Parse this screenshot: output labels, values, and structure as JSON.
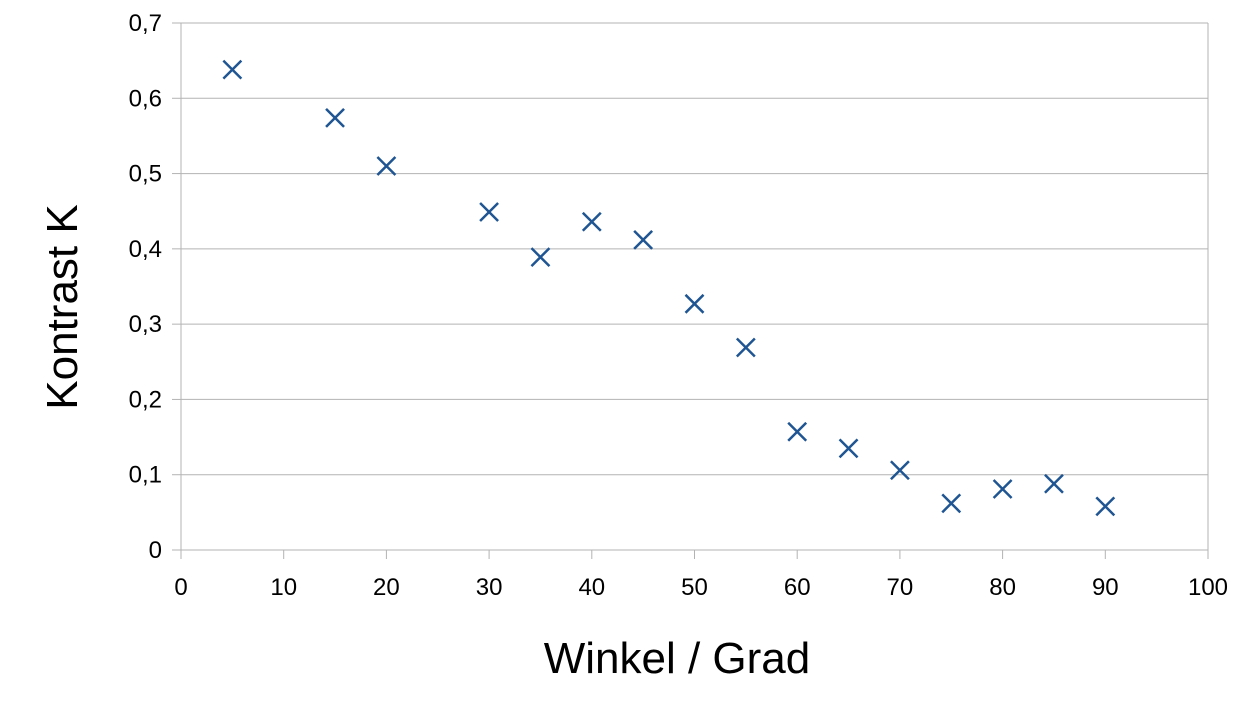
{
  "chart_data": {
    "type": "scatter",
    "title": "",
    "xlabel": "Winkel / Grad",
    "ylabel": "Kontrast K",
    "xlim": [
      0,
      100
    ],
    "ylim": [
      0,
      0.7
    ],
    "xticks": [
      "0",
      "10",
      "20",
      "30",
      "40",
      "50",
      "60",
      "70",
      "80",
      "90",
      "100"
    ],
    "yticks": [
      "0",
      "0,1",
      "0,2",
      "0,3",
      "0,4",
      "0,5",
      "0,6",
      "0,7"
    ],
    "grid": "horizontal",
    "legend": "none",
    "marker": "x",
    "color": "#1f5592",
    "series": [
      {
        "points": [
          {
            "x": 5,
            "y": 0.638
          },
          {
            "x": 15,
            "y": 0.574
          },
          {
            "x": 20,
            "y": 0.51
          },
          {
            "x": 30,
            "y": 0.449
          },
          {
            "x": 35,
            "y": 0.389
          },
          {
            "x": 40,
            "y": 0.436
          },
          {
            "x": 45,
            "y": 0.412
          },
          {
            "x": 50,
            "y": 0.327
          },
          {
            "x": 55,
            "y": 0.269
          },
          {
            "x": 60,
            "y": 0.157
          },
          {
            "x": 65,
            "y": 0.135
          },
          {
            "x": 70,
            "y": 0.106
          },
          {
            "x": 75,
            "y": 0.062
          },
          {
            "x": 80,
            "y": 0.081
          },
          {
            "x": 85,
            "y": 0.088
          },
          {
            "x": 90,
            "y": 0.058
          }
        ]
      }
    ]
  }
}
